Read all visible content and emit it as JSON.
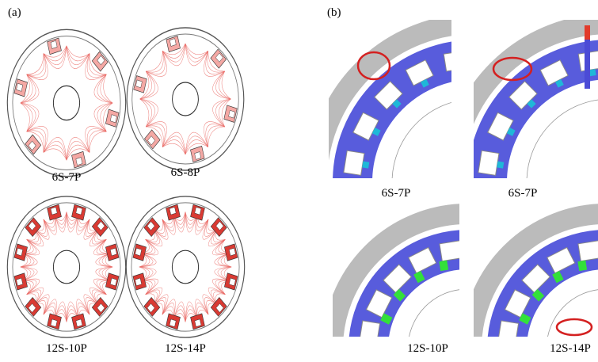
{
  "panel_a": {
    "label": "(a)",
    "items": [
      "6S-7P",
      "6S-8P",
      "12S-10P",
      "12S-14P"
    ]
  },
  "panel_b": {
    "label": "(b)",
    "items": [
      "6S-7P",
      "6S-7P",
      "12S-10P",
      "12S-14P"
    ]
  }
}
